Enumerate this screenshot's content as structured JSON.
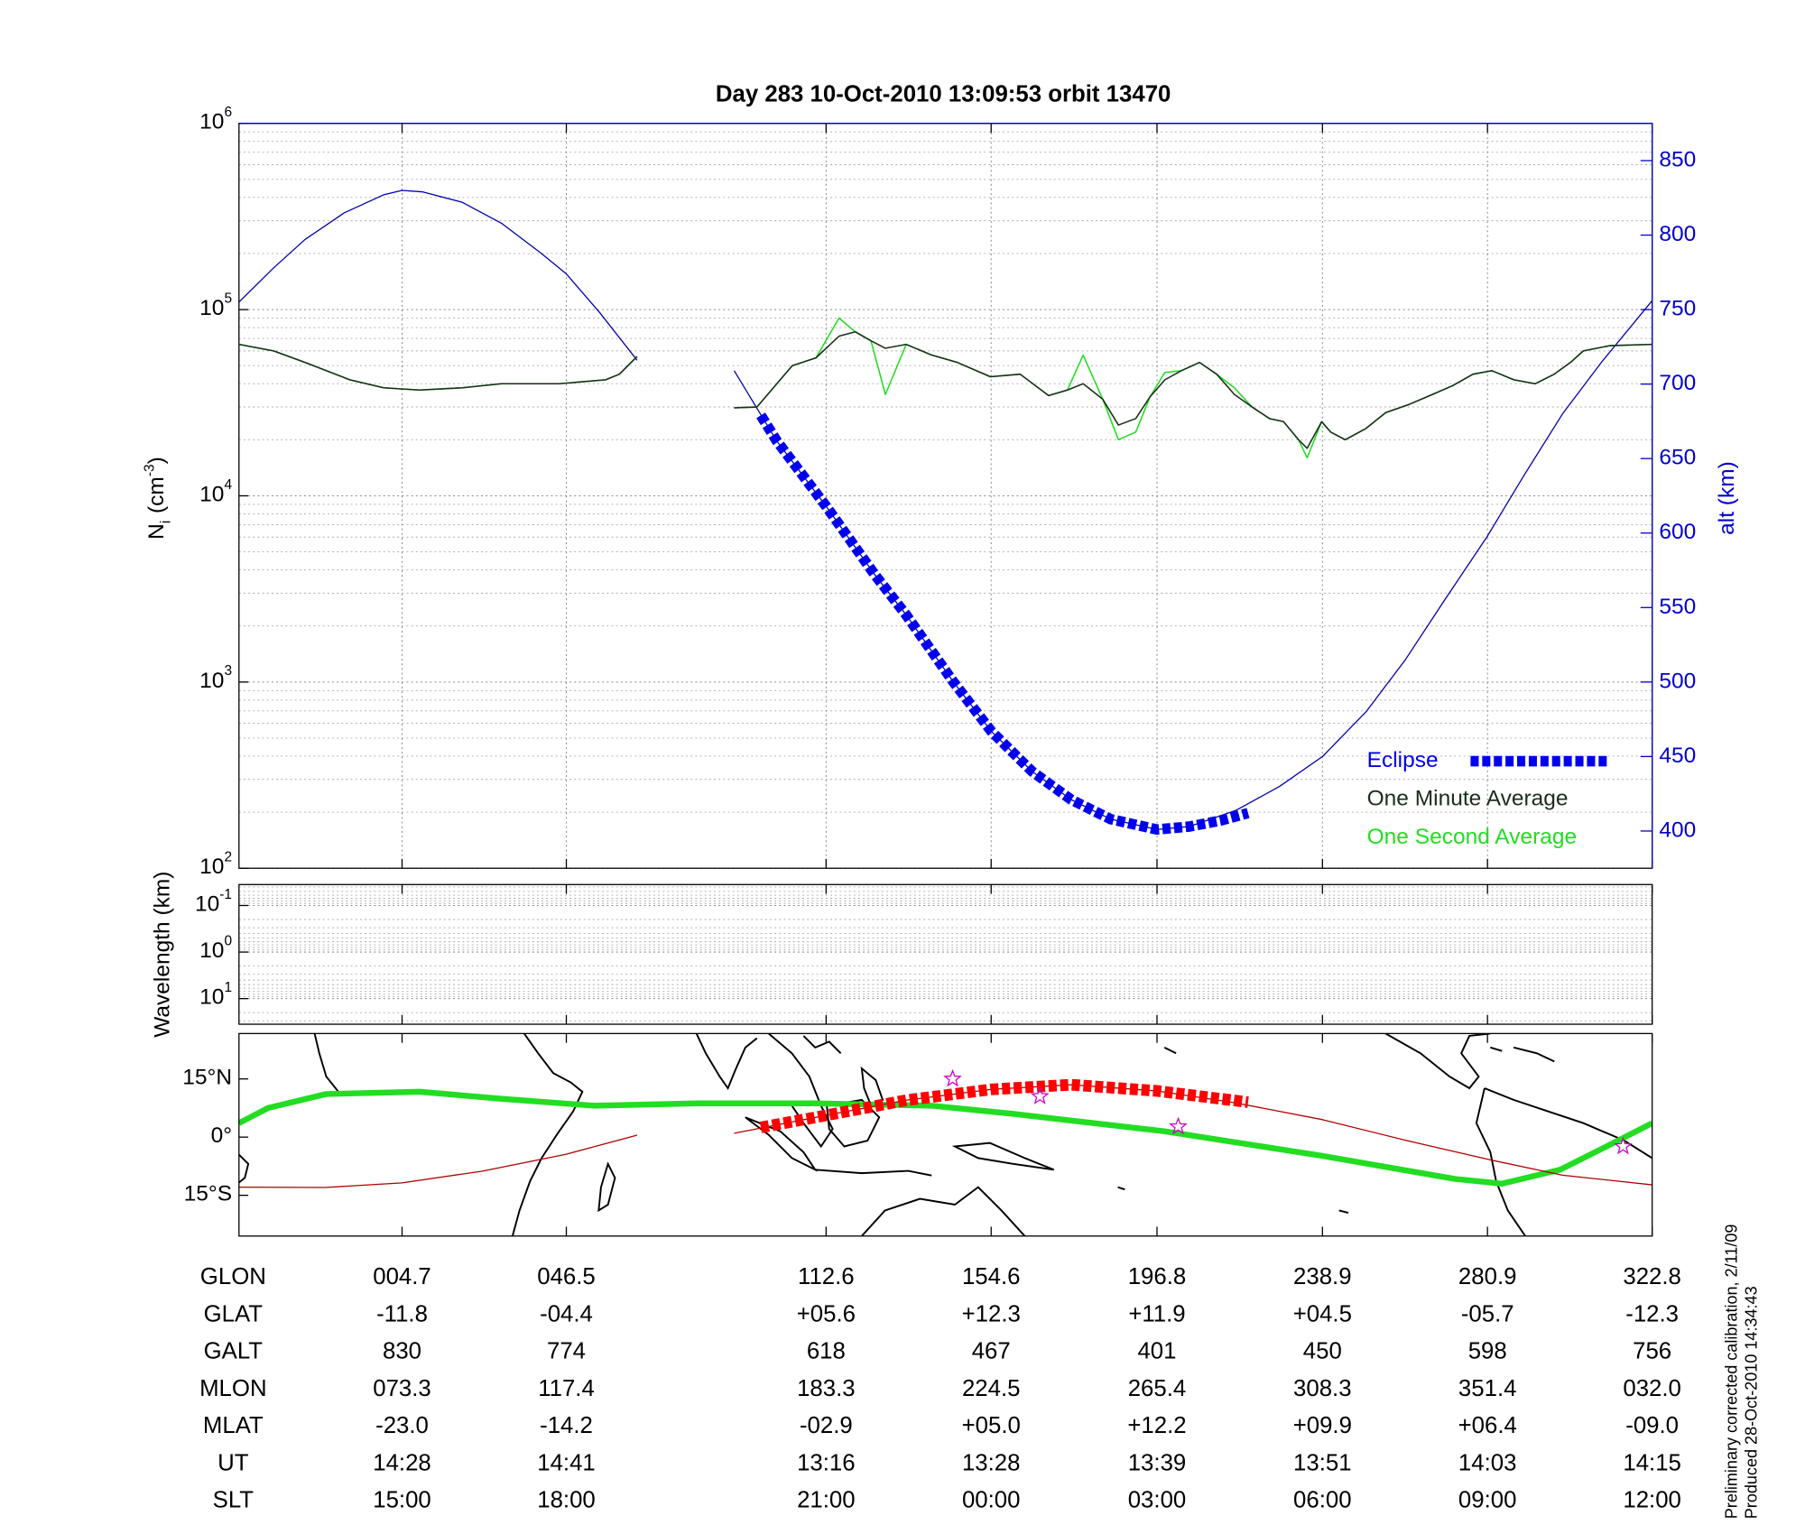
{
  "chart_data": [
    {
      "type": "line",
      "title": "Day 283  10-Oct-2010 13:09:53   orbit 13470",
      "ylabel": [
        "N",
        "i",
        "(cm",
        "-3",
        ")"
      ],
      "y2label": "alt (km)",
      "xlim": [
        -36.8,
        322.8
      ],
      "xticks": [
        4.7,
        46.5,
        112.6,
        154.6,
        196.8,
        238.9,
        280.9,
        322.8
      ],
      "ylog": true,
      "ylim": [
        100,
        1000000
      ],
      "yticks": [
        {
          "value": 100,
          "label": "10",
          "power": "2"
        },
        {
          "value": 1000,
          "label": "10",
          "power": "3"
        },
        {
          "value": 10000,
          "label": "10",
          "power": "4"
        },
        {
          "value": 100000,
          "label": "10",
          "power": "5"
        },
        {
          "value": 1000000,
          "label": "10",
          "power": "6"
        }
      ],
      "y2lim": [
        375,
        875
      ],
      "y2ticks": [
        400,
        450,
        500,
        550,
        600,
        650,
        700,
        750,
        800,
        850
      ],
      "y2color": "#0000cc",
      "grid": "both",
      "legend": "lower right",
      "series": [
        {
          "color": "#0000aa",
          "axis": "y2",
          "width": 1,
          "x": [
            -36.8,
            -28,
            -20,
            -10,
            0,
            4.7,
            10,
            20,
            30,
            40,
            46.5,
            55,
            64.5,
            null,
            89.2,
            100,
            112.6,
            125,
            133,
            145,
            154.6,
            165,
            175,
            185,
            196.8,
            205,
            217,
            228,
            238.9,
            250,
            260,
            270,
            280.9,
            290,
            300,
            310,
            322.8
          ],
          "values": [
            755,
            778,
            797,
            815,
            827,
            830,
            829,
            822,
            808,
            788,
            774,
            748,
            716,
            null,
            709,
            662,
            618,
            572,
            545,
            500,
            467,
            440,
            421,
            408,
            401,
            403,
            414,
            430,
            450,
            480,
            515,
            555,
            598,
            638,
            680,
            715,
            756
          ]
        },
        {
          "name": "One Second Average",
          "color": "#22dd22",
          "width": 1.2,
          "x": [
            -36.8,
            -28,
            -20,
            -8.6,
            0,
            9.1,
            20,
            30,
            44.7,
            56.5,
            60,
            64.5,
            null,
            89.2,
            95,
            104,
            110,
            115.9,
            120,
            124,
            127.7,
            133,
            139.5,
            146,
            154.4,
            162,
            169.2,
            174,
            178,
            183,
            187,
            191.4,
            195,
            198.8,
            203,
            207.6,
            212,
            216.5,
            221,
            225.4,
            229,
            232.8,
            235,
            238.7,
            241,
            244.7,
            250,
            255,
            261,
            266.9,
            272,
            277.2,
            282,
            287.6,
            293,
            297.9,
            302,
            305.3,
            312,
            322.8
          ],
          "values": [
            65000,
            60000,
            52000,
            42000,
            38000,
            37000,
            38000,
            40000,
            40000,
            42000,
            45000,
            56000,
            null,
            29700,
            30000,
            50000,
            55000,
            90000,
            76000,
            68000,
            35000,
            65000,
            57000,
            52000,
            43600,
            45000,
            34500,
            37000,
            57000,
            33000,
            20000,
            22000,
            34000,
            46000,
            47000,
            52000,
            45000,
            38000,
            30000,
            26000,
            25000,
            20000,
            16000,
            25000,
            22000,
            20000,
            23000,
            28000,
            31000,
            35000,
            39000,
            45000,
            47000,
            42000,
            40000,
            45000,
            52000,
            60000,
            64000,
            65000
          ]
        },
        {
          "name": "One Minute Average",
          "color": "#1a2e1a",
          "width": 1.2,
          "x": [
            -36.8,
            -28,
            -20,
            -8.6,
            0,
            9.1,
            20,
            30,
            44.7,
            56.5,
            60,
            64.5,
            null,
            89.2,
            95,
            104,
            110,
            115.9,
            120,
            124,
            127.7,
            133,
            139.5,
            146,
            154.4,
            162,
            169.2,
            174,
            178,
            183,
            187,
            191.4,
            195,
            198.8,
            203,
            207.6,
            212,
            216.5,
            221,
            225.4,
            229,
            232.8,
            235,
            238.7,
            241,
            244.7,
            250,
            255,
            261,
            266.9,
            272,
            277.2,
            282,
            287.6,
            293,
            297.9,
            302,
            305.3,
            312,
            322.8
          ],
          "values": [
            65000,
            60000,
            52000,
            42000,
            38000,
            37000,
            38000,
            40000,
            40000,
            42000,
            45000,
            56000,
            null,
            29700,
            30000,
            50000,
            55000,
            72000,
            76000,
            68000,
            62000,
            65000,
            57000,
            52000,
            43600,
            45000,
            34500,
            37000,
            40000,
            33000,
            24000,
            26000,
            34000,
            42000,
            47000,
            52000,
            45000,
            35000,
            30000,
            26000,
            25000,
            20000,
            18000,
            25000,
            22000,
            20000,
            23000,
            28000,
            31000,
            35000,
            39000,
            45000,
            47000,
            42000,
            40000,
            45000,
            52000,
            60000,
            64000,
            65000
          ]
        },
        {
          "name": "Eclipse",
          "color": "#0000ee",
          "axis": "y2",
          "width": 9,
          "style": "dashed-thick",
          "x": [
            96,
            100,
            112.6,
            125,
            133,
            145,
            154.6,
            165,
            175,
            185,
            196.8,
            205,
            213,
            220
          ],
          "values": [
            679,
            662,
            618,
            572,
            545,
            500,
            467,
            440,
            421,
            408,
            401,
            403,
            407,
            412
          ]
        }
      ]
    },
    {
      "type": "line",
      "ylabel": "Wavelength (km)",
      "xlim": [
        -36.8,
        322.8
      ],
      "xticks": [
        4.7,
        46.5,
        112.6,
        154.6,
        196.8,
        238.9,
        280.9,
        322.8
      ],
      "ylog": true,
      "yreverse": true,
      "ylim": [
        0.0355,
        35.5
      ],
      "yticks": [
        {
          "value": 0.1,
          "label": "10",
          "power": "-1"
        },
        {
          "value": 1,
          "label": "10",
          "power": "0"
        },
        {
          "value": 10,
          "label": "10",
          "power": "1"
        }
      ],
      "grid": "y",
      "series": []
    },
    {
      "type": "map",
      "xlim": [
        -36.8,
        322.8
      ],
      "xticks": [
        4.7,
        46.5,
        112.6,
        154.6,
        196.8,
        238.9,
        280.9,
        322.8
      ],
      "ylim": [
        -25.5,
        26.7
      ],
      "yticks": [
        {
          "value": 15,
          "label": "15°N"
        },
        {
          "value": 0,
          "label": "0°"
        },
        {
          "value": -15,
          "label": "15°S"
        }
      ],
      "series": [
        {
          "color": "#22dd22",
          "width": 5,
          "x": [
            -36.8,
            -29.4,
            -14.6,
            9.1,
            29.8,
            53.5,
            80.2,
            109.8,
            139.4,
            160.2,
            198.7,
            238.7,
            272.7,
            284.6,
            299.4,
            311.2,
            322.8
          ],
          "values": [
            3.6,
            7.5,
            11.1,
            11.7,
            9.9,
            8.1,
            8.7,
            8.7,
            8.1,
            6,
            1.5,
            -4.8,
            -10.8,
            -12,
            -8.4,
            -2.4,
            3.6
          ]
        },
        {
          "color": "#b00000",
          "width": 1,
          "x": [
            -36.8,
            -15,
            4.7,
            25,
            46.5,
            64.5,
            null,
            89.2,
            112.6,
            133,
            154.6,
            175,
            196.8,
            217,
            238.9,
            260,
            280.9,
            300,
            322.8
          ],
          "values": [
            -12.9,
            -13,
            -11.8,
            -8.8,
            -4.4,
            0.5,
            null,
            1,
            5.6,
            9.5,
            12.3,
            13.5,
            11.9,
            8.8,
            4.5,
            -0.8,
            -5.7,
            -9.8,
            -12.3
          ]
        },
        {
          "color": "#ff0000",
          "width": 10,
          "style": "dashed-thick",
          "x": [
            96,
            112.6,
            133,
            154.6,
            175,
            196.8,
            220
          ],
          "values": [
            2.5,
            5.6,
            9.5,
            12.3,
            13.5,
            11.9,
            9
          ]
        },
        {
          "color": "#cc00cc",
          "marker": "star",
          "x": [
            144.8,
            167,
            202.2,
            315.4
          ],
          "values": [
            15,
            10.5,
            2.7,
            -2.4
          ]
        }
      ]
    }
  ],
  "table": {
    "rows": [
      [
        "GLON",
        "004.7",
        "046.5",
        "112.6",
        "154.6",
        "196.8",
        "238.9",
        "280.9",
        "322.8"
      ],
      [
        "GLAT",
        "-11.8",
        "-04.4",
        "+05.6",
        "+12.3",
        "+11.9",
        "+04.5",
        "-05.7",
        "-12.3"
      ],
      [
        "GALT",
        "830",
        "774",
        "618",
        "467",
        "401",
        "450",
        "598",
        "756"
      ],
      [
        "MLON",
        "073.3",
        "117.4",
        "183.3",
        "224.5",
        "265.4",
        "308.3",
        "351.4",
        "032.0"
      ],
      [
        "MLAT",
        "-23.0",
        "-14.2",
        "-02.9",
        "+05.0",
        "+12.2",
        "+09.9",
        "+06.4",
        "-09.0"
      ],
      [
        "UT",
        "14:28",
        "14:41",
        "13:16",
        "13:28",
        "13:39",
        "13:51",
        "14:03",
        "14:15"
      ],
      [
        "SLT",
        "15:00",
        "18:00",
        "21:00",
        "00:00",
        "03:00",
        "06:00",
        "09:00",
        "12:00"
      ]
    ]
  },
  "footnote": [
    "Preliminary corrected calibration, 2/11/09",
    "Produced 28-Oct-2010 14:34:43"
  ]
}
